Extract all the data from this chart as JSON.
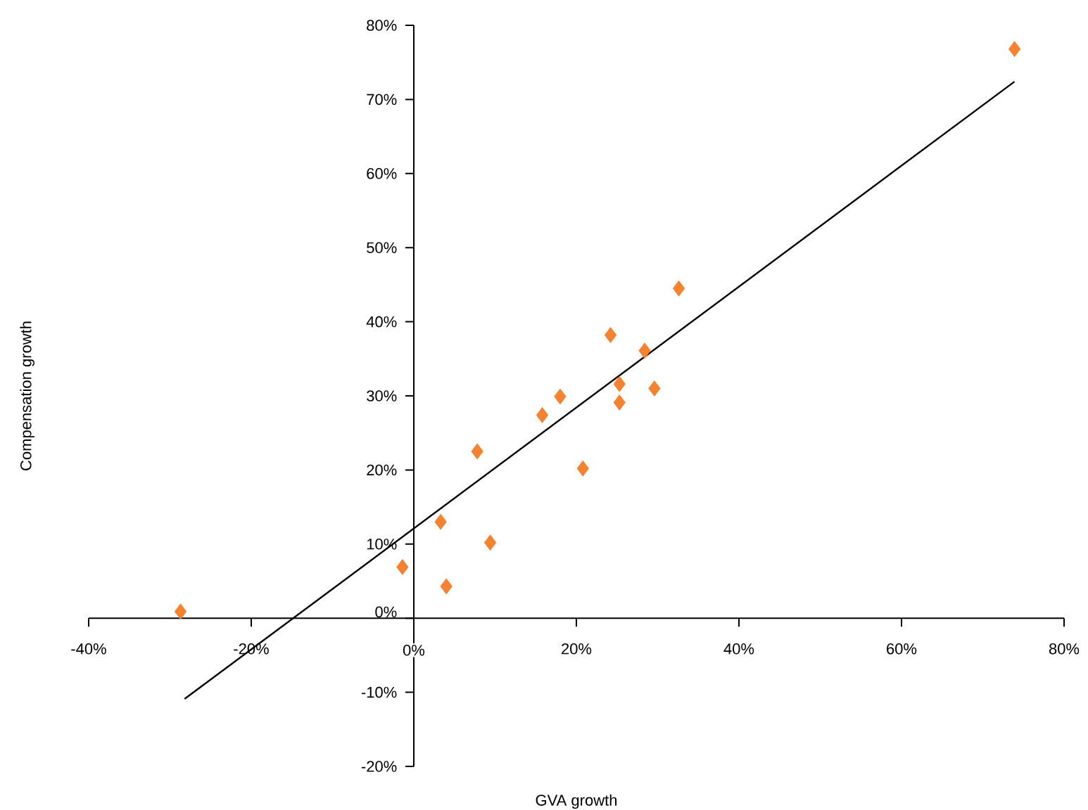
{
  "chart_data": {
    "type": "scatter",
    "xlabel": "GVA growth",
    "ylabel": "Compensation growth",
    "marker": "diamond",
    "xlim": [
      -40,
      80
    ],
    "ylim": [
      -20,
      80
    ],
    "xticks": [
      {
        "value": -40,
        "label": "-40%"
      },
      {
        "value": -20,
        "label": "-20%"
      },
      {
        "value": 0,
        "label": "0%"
      },
      {
        "value": 20,
        "label": "20%"
      },
      {
        "value": 40,
        "label": "40%"
      },
      {
        "value": 60,
        "label": "60%"
      },
      {
        "value": 80,
        "label": "80%"
      }
    ],
    "yticks": [
      {
        "value": -20,
        "label": "-20%"
      },
      {
        "value": -10,
        "label": "-10%"
      },
      {
        "value": 0,
        "label": "0%"
      },
      {
        "value": 10,
        "label": "10%"
      },
      {
        "value": 20,
        "label": "20%"
      },
      {
        "value": 30,
        "label": "30%"
      },
      {
        "value": 40,
        "label": "40%"
      },
      {
        "value": 50,
        "label": "50%"
      },
      {
        "value": 60,
        "label": "60%"
      },
      {
        "value": 70,
        "label": "70%"
      },
      {
        "value": 80,
        "label": "80%"
      }
    ],
    "series": [
      {
        "color": "#f4822f",
        "x": [
          73.9,
          -28.7,
          -1.4,
          3.3,
          4.0,
          7.8,
          9.4,
          15.8,
          18.0,
          20.8,
          24.2,
          25.3,
          25.3,
          28.4,
          29.6,
          32.6
        ],
        "values": [
          76.8,
          0.9,
          6.9,
          13.0,
          4.3,
          22.5,
          10.2,
          27.4,
          29.9,
          20.2,
          38.2,
          31.6,
          29.1,
          36.1,
          31.0,
          44.5
        ]
      },
      {
        "type": "line",
        "color": "#000000",
        "marker": "none",
        "x": [
          -28.2,
          73.9
        ],
        "values": [
          -10.9,
          72.4
        ]
      }
    ]
  }
}
